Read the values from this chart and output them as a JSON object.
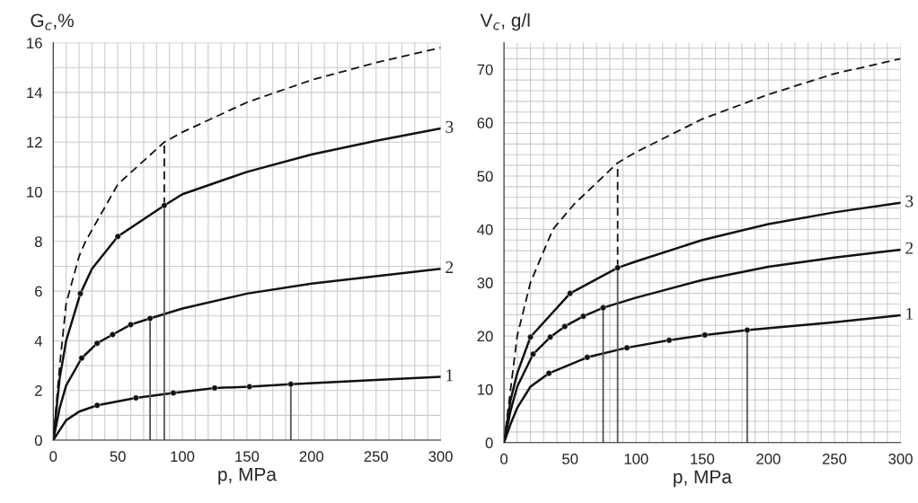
{
  "chart_data": [
    {
      "type": "line",
      "xlabel": "p, MPa",
      "ylabel": "G$_{c}$,%",
      "xlim": [
        0,
        300
      ],
      "ylim": [
        0,
        16
      ],
      "grid": true,
      "xticks": [
        0,
        {
          "value": 10,
          "label": null
        },
        {
          "value": 20,
          "label": null
        },
        {
          "value": 30,
          "label": null
        },
        {
          "value": 40,
          "label": null
        },
        50,
        {
          "value": 60,
          "label": null
        },
        {
          "value": 70,
          "label": null
        },
        {
          "value": 80,
          "label": null
        },
        {
          "value": 90,
          "label": null
        },
        100,
        {
          "value": 110,
          "label": null
        },
        {
          "value": 120,
          "label": null
        },
        {
          "value": 130,
          "label": null
        },
        {
          "value": 140,
          "label": null
        },
        150,
        {
          "value": 160,
          "label": null
        },
        {
          "value": 170,
          "label": null
        },
        {
          "value": 180,
          "label": null
        },
        {
          "value": 190,
          "label": null
        },
        200,
        {
          "value": 210,
          "label": null
        },
        {
          "value": 220,
          "label": null
        },
        {
          "value": 230,
          "label": null
        },
        {
          "value": 240,
          "label": null
        },
        250,
        {
          "value": 260,
          "label": null
        },
        {
          "value": 270,
          "label": null
        },
        {
          "value": 280,
          "label": null
        },
        {
          "value": 290,
          "label": null
        },
        300
      ],
      "yticks": [
        0,
        {
          "value": 1,
          "label": null
        },
        2,
        {
          "value": 3,
          "label": null
        },
        4,
        {
          "value": 5,
          "label": null
        },
        6,
        {
          "value": 7,
          "label": null
        },
        8,
        {
          "value": 9,
          "label": null
        },
        10,
        {
          "value": 11,
          "label": null
        },
        12,
        {
          "value": 13,
          "label": null
        },
        14,
        {
          "value": 15,
          "label": null
        },
        16
      ],
      "series": [
        {
          "line_style": "dashed",
          "color": "#111111",
          "x": [
            0,
            5,
            10,
            20,
            25,
            50,
            86,
            100,
            150,
            200,
            250,
            300
          ],
          "values": [
            0,
            3,
            5.5,
            7.4,
            8,
            10.3,
            12,
            12.4,
            13.6,
            14.5,
            15.2,
            15.8
          ]
        },
        {
          "type": "line",
          "name": "3",
          "line_style": "solid",
          "color": "#111111",
          "x": [
            0,
            5,
            10,
            21,
            30,
            50,
            86,
            100,
            150,
            200,
            250,
            300
          ],
          "values": [
            0,
            2.5,
            4,
            5.9,
            6.9,
            8.2,
            9.45,
            9.9,
            10.8,
            11.5,
            12.05,
            12.55
          ]
        },
        {
          "type": "line",
          "name": "2",
          "line_style": "solid",
          "color": "#111111",
          "x": [
            0,
            5,
            10,
            22,
            34,
            46,
            60,
            75,
            100,
            150,
            200,
            250,
            300
          ],
          "values": [
            0,
            1.3,
            2.2,
            3.3,
            3.9,
            4.25,
            4.65,
            4.9,
            5.3,
            5.9,
            6.3,
            6.6,
            6.9
          ]
        },
        {
          "type": "line",
          "name": "1",
          "line_style": "solid",
          "color": "#111111",
          "x": [
            0,
            5,
            10,
            20,
            34,
            64,
            93,
            125,
            152,
            184,
            250,
            300
          ],
          "values": [
            0,
            0.4,
            0.8,
            1.15,
            1.4,
            1.7,
            1.9,
            2.1,
            2.15,
            2.25,
            2.42,
            2.55
          ]
        },
        {
          "type": "scatter",
          "marker": "circle",
          "color": "#111111",
          "x": [
            21,
            50,
            86,
            22,
            34,
            46,
            60,
            75,
            34,
            64,
            93,
            125,
            152,
            184
          ],
          "values": [
            5.9,
            8.2,
            9.45,
            3.3,
            3.9,
            4.25,
            4.65,
            4.9,
            1.4,
            1.7,
            1.9,
            2.1,
            2.15,
            2.25
          ]
        },
        {
          "type": "line",
          "line_style": "solid",
          "color": "#555555",
          "x": [
            75,
            75
          ],
          "values": [
            0,
            4.9
          ]
        },
        {
          "type": "line",
          "line_style": "solid",
          "color": "#555555",
          "x": [
            86,
            86
          ],
          "values": [
            0,
            9.45
          ]
        },
        {
          "type": "line",
          "line_style": "dashed",
          "color": "#111111",
          "x": [
            86,
            86
          ],
          "values": [
            9.45,
            12
          ]
        },
        {
          "type": "line",
          "line_style": "solid",
          "color": "#555555",
          "x": [
            184,
            184
          ],
          "values": [
            0,
            2.25
          ]
        }
      ]
    },
    {
      "type": "line",
      "xlabel": "p, MPa",
      "ylabel": "V$_{c}$, g/l",
      "xlim": [
        0,
        300
      ],
      "ylim": [
        0,
        75
      ],
      "grid": true,
      "xticks": [
        0,
        {
          "value": 10,
          "label": null
        },
        {
          "value": 20,
          "label": null
        },
        {
          "value": 30,
          "label": null
        },
        {
          "value": 40,
          "label": null
        },
        50,
        {
          "value": 60,
          "label": null
        },
        {
          "value": 70,
          "label": null
        },
        {
          "value": 80,
          "label": null
        },
        {
          "value": 90,
          "label": null
        },
        100,
        {
          "value": 110,
          "label": null
        },
        {
          "value": 120,
          "label": null
        },
        {
          "value": 130,
          "label": null
        },
        {
          "value": 140,
          "label": null
        },
        150,
        {
          "value": 160,
          "label": null
        },
        {
          "value": 170,
          "label": null
        },
        {
          "value": 180,
          "label": null
        },
        {
          "value": 190,
          "label": null
        },
        200,
        {
          "value": 210,
          "label": null
        },
        {
          "value": 220,
          "label": null
        },
        {
          "value": 230,
          "label": null
        },
        {
          "value": 240,
          "label": null
        },
        250,
        {
          "value": 260,
          "label": null
        },
        {
          "value": 270,
          "label": null
        },
        {
          "value": 280,
          "label": null
        },
        {
          "value": 290,
          "label": null
        },
        300
      ],
      "yticks": [
        0,
        {
          "value": 2,
          "label": null
        },
        {
          "value": 4,
          "label": null
        },
        {
          "value": 6,
          "label": null
        },
        {
          "value": 8,
          "label": null
        },
        10,
        {
          "value": 12,
          "label": null
        },
        {
          "value": 14,
          "label": null
        },
        {
          "value": 16,
          "label": null
        },
        {
          "value": 18,
          "label": null
        },
        20,
        {
          "value": 22,
          "label": null
        },
        {
          "value": 24,
          "label": null
        },
        {
          "value": 26,
          "label": null
        },
        {
          "value": 28,
          "label": null
        },
        30,
        {
          "value": 32,
          "label": null
        },
        {
          "value": 34,
          "label": null
        },
        {
          "value": 36,
          "label": null
        },
        {
          "value": 38,
          "label": null
        },
        40,
        {
          "value": 42,
          "label": null
        },
        {
          "value": 44,
          "label": null
        },
        {
          "value": 46,
          "label": null
        },
        {
          "value": 48,
          "label": null
        },
        50,
        {
          "value": 52,
          "label": null
        },
        {
          "value": 54,
          "label": null
        },
        {
          "value": 56,
          "label": null
        },
        {
          "value": 58,
          "label": null
        },
        60,
        {
          "value": 62,
          "label": null
        },
        {
          "value": 64,
          "label": null
        },
        {
          "value": 66,
          "label": null
        },
        {
          "value": 68,
          "label": null
        },
        70,
        {
          "value": 72,
          "label": null
        },
        {
          "value": 74,
          "label": null
        }
      ],
      "series": [
        {
          "line_style": "dashed",
          "color": "#111111",
          "x": [
            0,
            5,
            10,
            20,
            37,
            53,
            86,
            100,
            150,
            200,
            250,
            300
          ],
          "values": [
            0,
            10,
            20,
            30,
            40,
            44.7,
            52.5,
            54.5,
            60.7,
            65.3,
            69.2,
            72
          ]
        },
        {
          "type": "line",
          "name": "3",
          "line_style": "solid",
          "color": "#111111",
          "x": [
            0,
            5,
            10,
            20,
            50,
            86,
            100,
            150,
            200,
            250,
            300
          ],
          "values": [
            0,
            8,
            13,
            19.8,
            28,
            32.8,
            34,
            38,
            41,
            43.2,
            45
          ]
        },
        {
          "type": "line",
          "name": "2",
          "line_style": "solid",
          "color": "#111111",
          "x": [
            0,
            5,
            10,
            22,
            35,
            46,
            60,
            75,
            100,
            150,
            200,
            250,
            300
          ],
          "values": [
            0,
            6,
            10.5,
            16.6,
            19.8,
            21.8,
            23.7,
            25.3,
            27.2,
            30.5,
            33,
            34.7,
            36.2
          ]
        },
        {
          "type": "line",
          "name": "1",
          "line_style": "solid",
          "color": "#111111",
          "x": [
            0,
            5,
            10,
            20,
            34,
            63,
            93,
            125,
            152,
            184,
            250,
            300
          ],
          "values": [
            0,
            3.5,
            6.5,
            10.5,
            13,
            16,
            17.8,
            19.2,
            20.2,
            21.1,
            22.6,
            23.9
          ]
        },
        {
          "type": "scatter",
          "marker": "circle",
          "color": "#111111",
          "x": [
            20,
            50,
            86,
            22,
            35,
            46,
            60,
            75,
            34,
            63,
            93,
            125,
            152,
            184
          ],
          "values": [
            19.8,
            28,
            32.8,
            16.6,
            19.8,
            21.8,
            23.7,
            25.3,
            13,
            16,
            17.8,
            19.2,
            20.2,
            21.1
          ]
        },
        {
          "type": "line",
          "line_style": "solid",
          "color": "#555555",
          "x": [
            75,
            75
          ],
          "values": [
            0,
            25.3
          ]
        },
        {
          "type": "line",
          "line_style": "solid",
          "color": "#555555",
          "x": [
            86,
            86
          ],
          "values": [
            0,
            32.8
          ]
        },
        {
          "type": "line",
          "line_style": "dashed",
          "color": "#111111",
          "x": [
            86,
            86
          ],
          "values": [
            32.8,
            52.5
          ]
        },
        {
          "type": "line",
          "line_style": "solid",
          "color": "#555555",
          "x": [
            184,
            184
          ],
          "values": [
            0,
            21.1
          ]
        }
      ]
    }
  ]
}
